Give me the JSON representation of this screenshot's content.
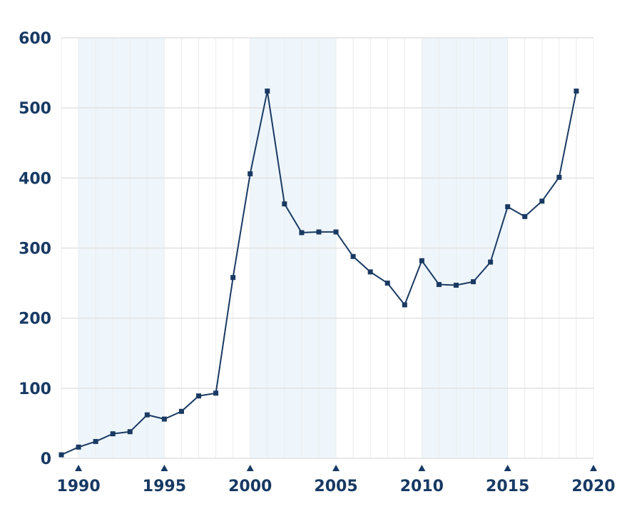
{
  "colors": {
    "line": "#1a3a63",
    "band": "#eef6fb",
    "grid": "#e2e2e2",
    "minor_grid": "#ececec",
    "text": "#173963"
  },
  "chart_data": {
    "type": "line",
    "title": "",
    "xlabel": "",
    "ylabel": "",
    "xlim": [
      1989,
      2020
    ],
    "ylim": [
      0,
      600
    ],
    "x_ticks": [
      1990,
      1995,
      2000,
      2005,
      2010,
      2015,
      2020
    ],
    "y_ticks": [
      0,
      100,
      200,
      300,
      400,
      500,
      600
    ],
    "x_tick_labels": [
      "1990",
      "1995",
      "2000",
      "2005",
      "2010",
      "2015",
      "2020"
    ],
    "y_tick_labels": [
      "0",
      "100",
      "200",
      "300",
      "400",
      "500",
      "600"
    ],
    "grid": true,
    "legend": "none",
    "shaded_bands": [
      [
        1990,
        1995
      ],
      [
        2000,
        2005
      ],
      [
        2010,
        2015
      ]
    ],
    "series": [
      {
        "marker": "square",
        "x": [
          1989,
          1990,
          1991,
          1992,
          1993,
          1994,
          1995,
          1996,
          1997,
          1998,
          1999,
          2000,
          2001,
          2002,
          2003,
          2004,
          2005,
          2006,
          2007,
          2008,
          2009,
          2010,
          2011,
          2012,
          2013,
          2014,
          2015,
          2016,
          2017,
          2018,
          2019
        ],
        "y": [
          5,
          16,
          24,
          35,
          38,
          62,
          56,
          67,
          89,
          93,
          258,
          406,
          524,
          363,
          322,
          323,
          323,
          288,
          266,
          250,
          219,
          282,
          248,
          247,
          252,
          280,
          359,
          345,
          367,
          401,
          524
        ]
      }
    ]
  }
}
